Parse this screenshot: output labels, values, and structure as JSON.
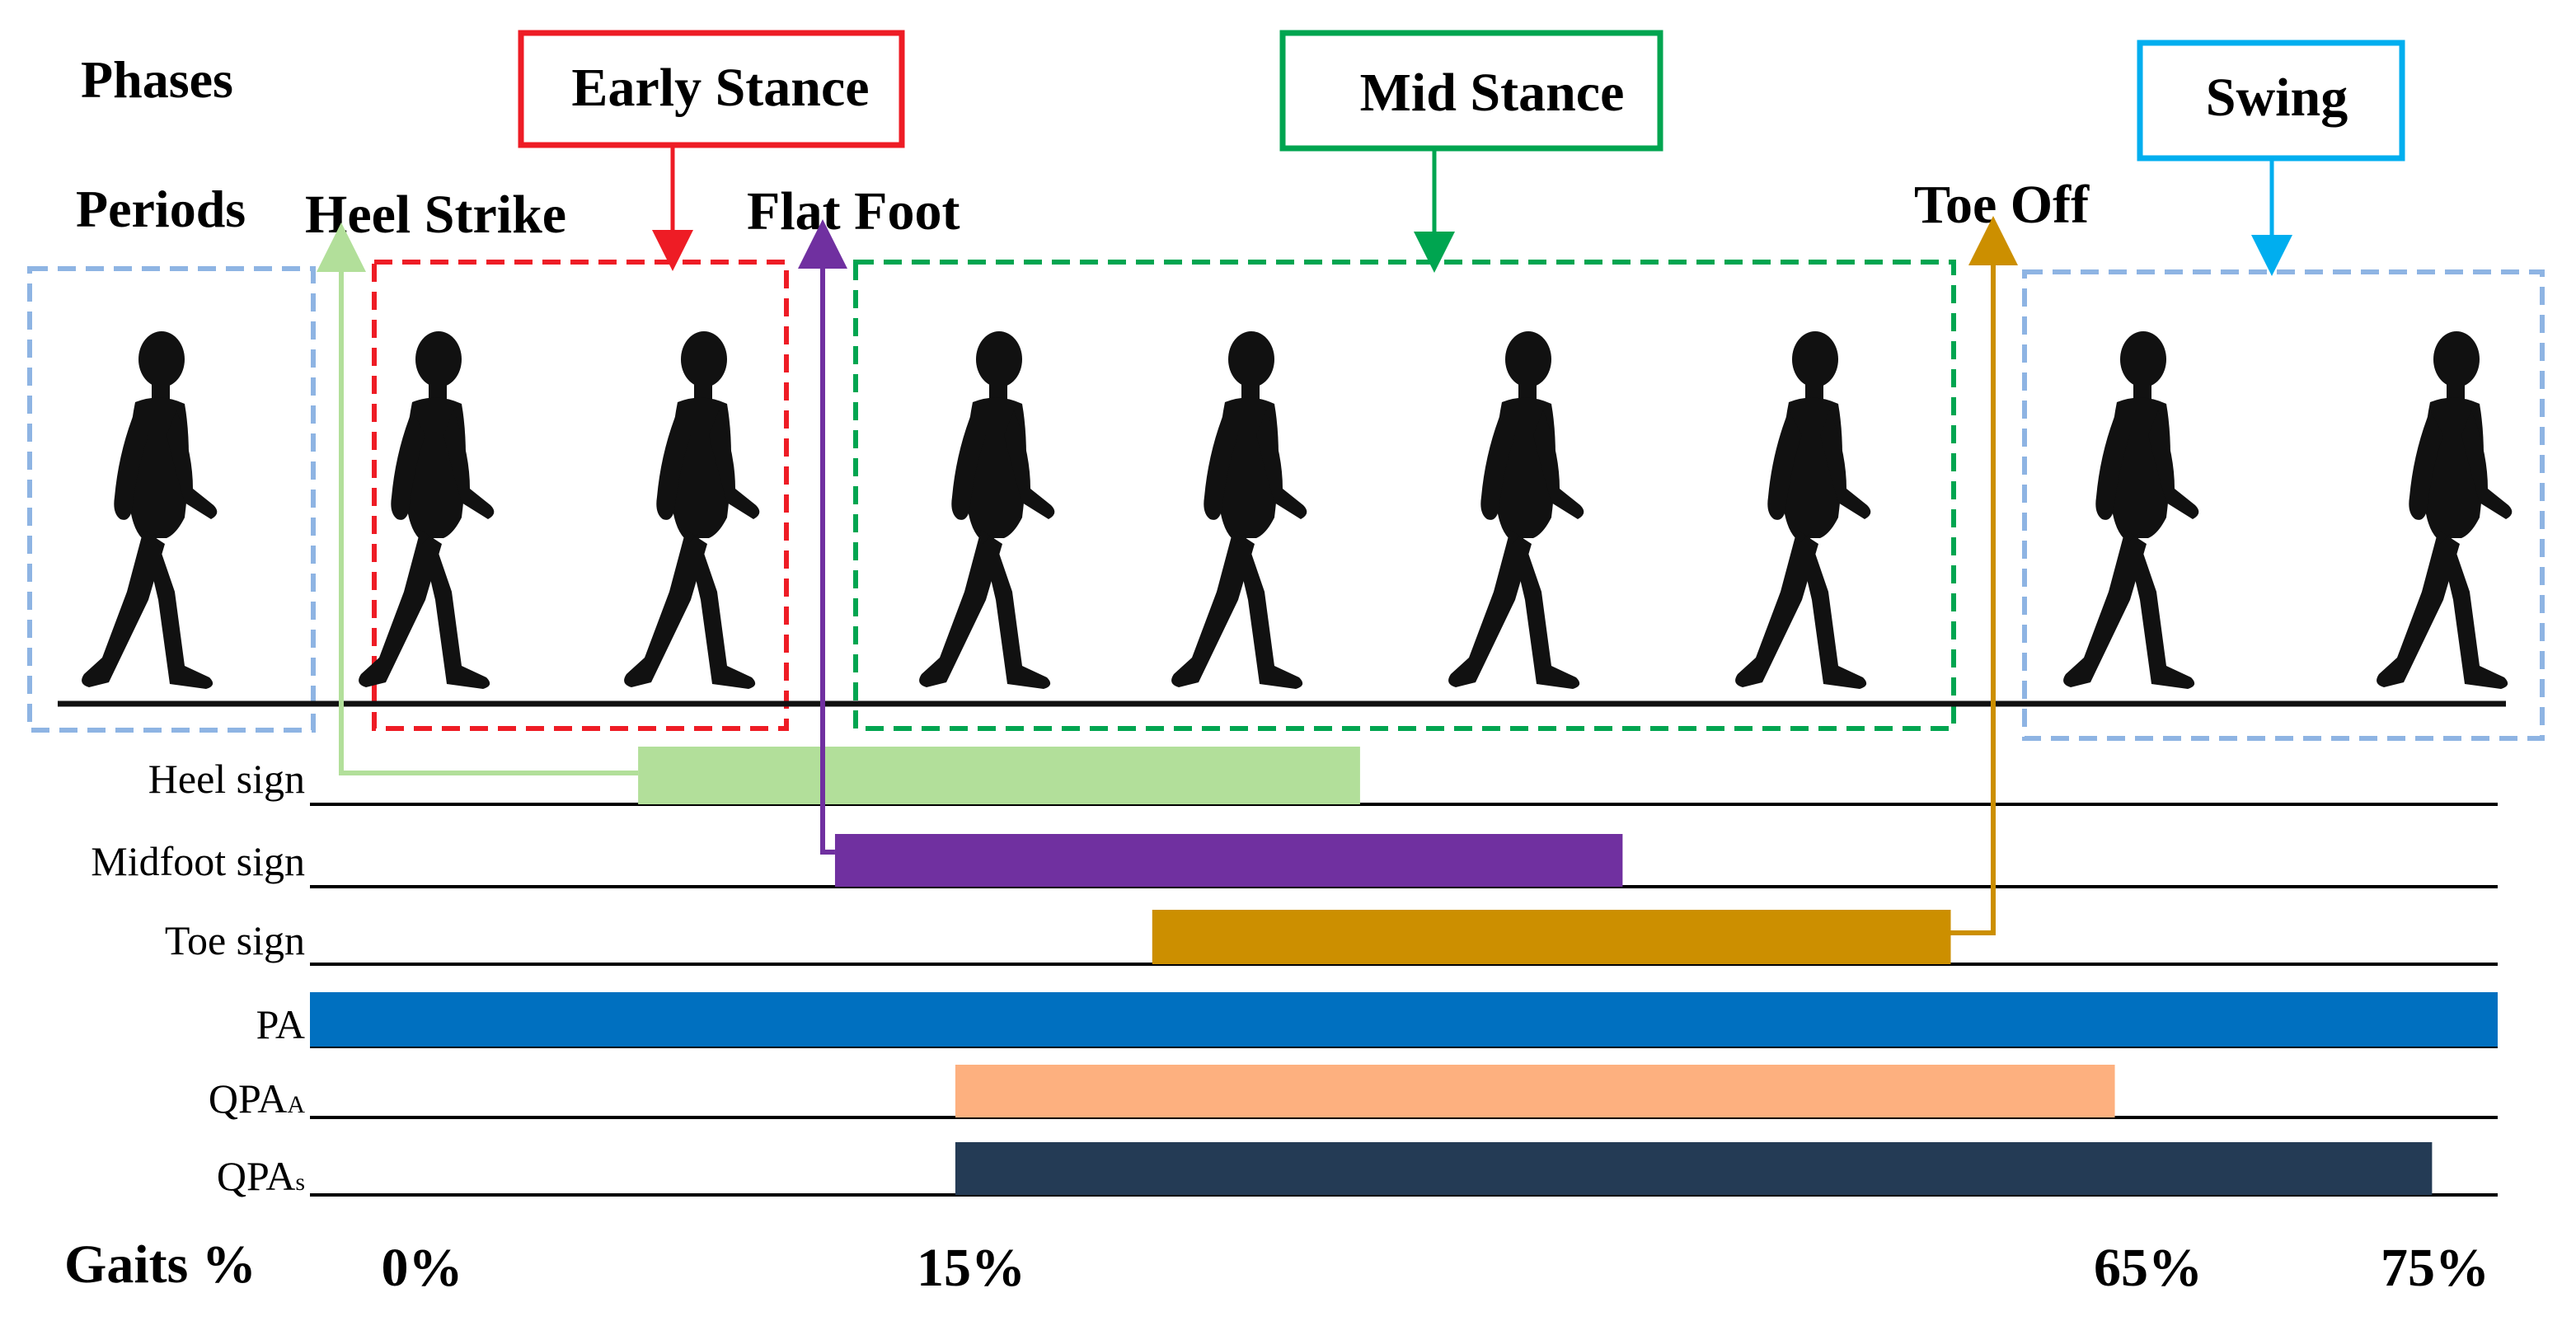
{
  "labels": {
    "phases": "Phases",
    "periods": "Periods",
    "gaits": "Gaits %"
  },
  "phases": [
    {
      "name": "Early Stance",
      "color": "#ee1c25"
    },
    {
      "name": "Mid Stance",
      "color": "#00a550"
    },
    {
      "name": "Swing",
      "color": "#00aeef"
    }
  ],
  "periods": [
    "Heel Strike",
    "Flat Foot",
    "Toe Off"
  ],
  "signals": [
    {
      "label": "Heel sign",
      "color": "#b2df9a",
      "start_pct": 15,
      "end_pct": 48
    },
    {
      "label": "Midfoot sign",
      "color": "#7030a0",
      "start_pct": 24,
      "end_pct": 60
    },
    {
      "label": "Toe sign",
      "color": "#cc8f00",
      "start_pct": 38.5,
      "end_pct": 75
    },
    {
      "label": "PA",
      "color": "#0070c0",
      "start_pct": 0,
      "end_pct": 100
    },
    {
      "label": "QPA",
      "subscript": "A",
      "color": "#fdb07f",
      "start_pct": 29.5,
      "end_pct": 82.5
    },
    {
      "label": "QPA",
      "subscript": "s",
      "color": "#243b55",
      "start_pct": 29.5,
      "end_pct": 97
    }
  ],
  "gait_ticks": [
    "0%",
    "15%",
    "65%",
    "75%"
  ],
  "colors": {
    "swing_box": "#8eb4e3",
    "early_box": "#ee1c25",
    "mid_box": "#00a550",
    "heel_arrow": "#b2df9a",
    "midfoot_arrow": "#7030a0",
    "toe_arrow": "#cc8f00",
    "figure": "#111111",
    "ground": "#111111"
  },
  "figures_count": 9
}
